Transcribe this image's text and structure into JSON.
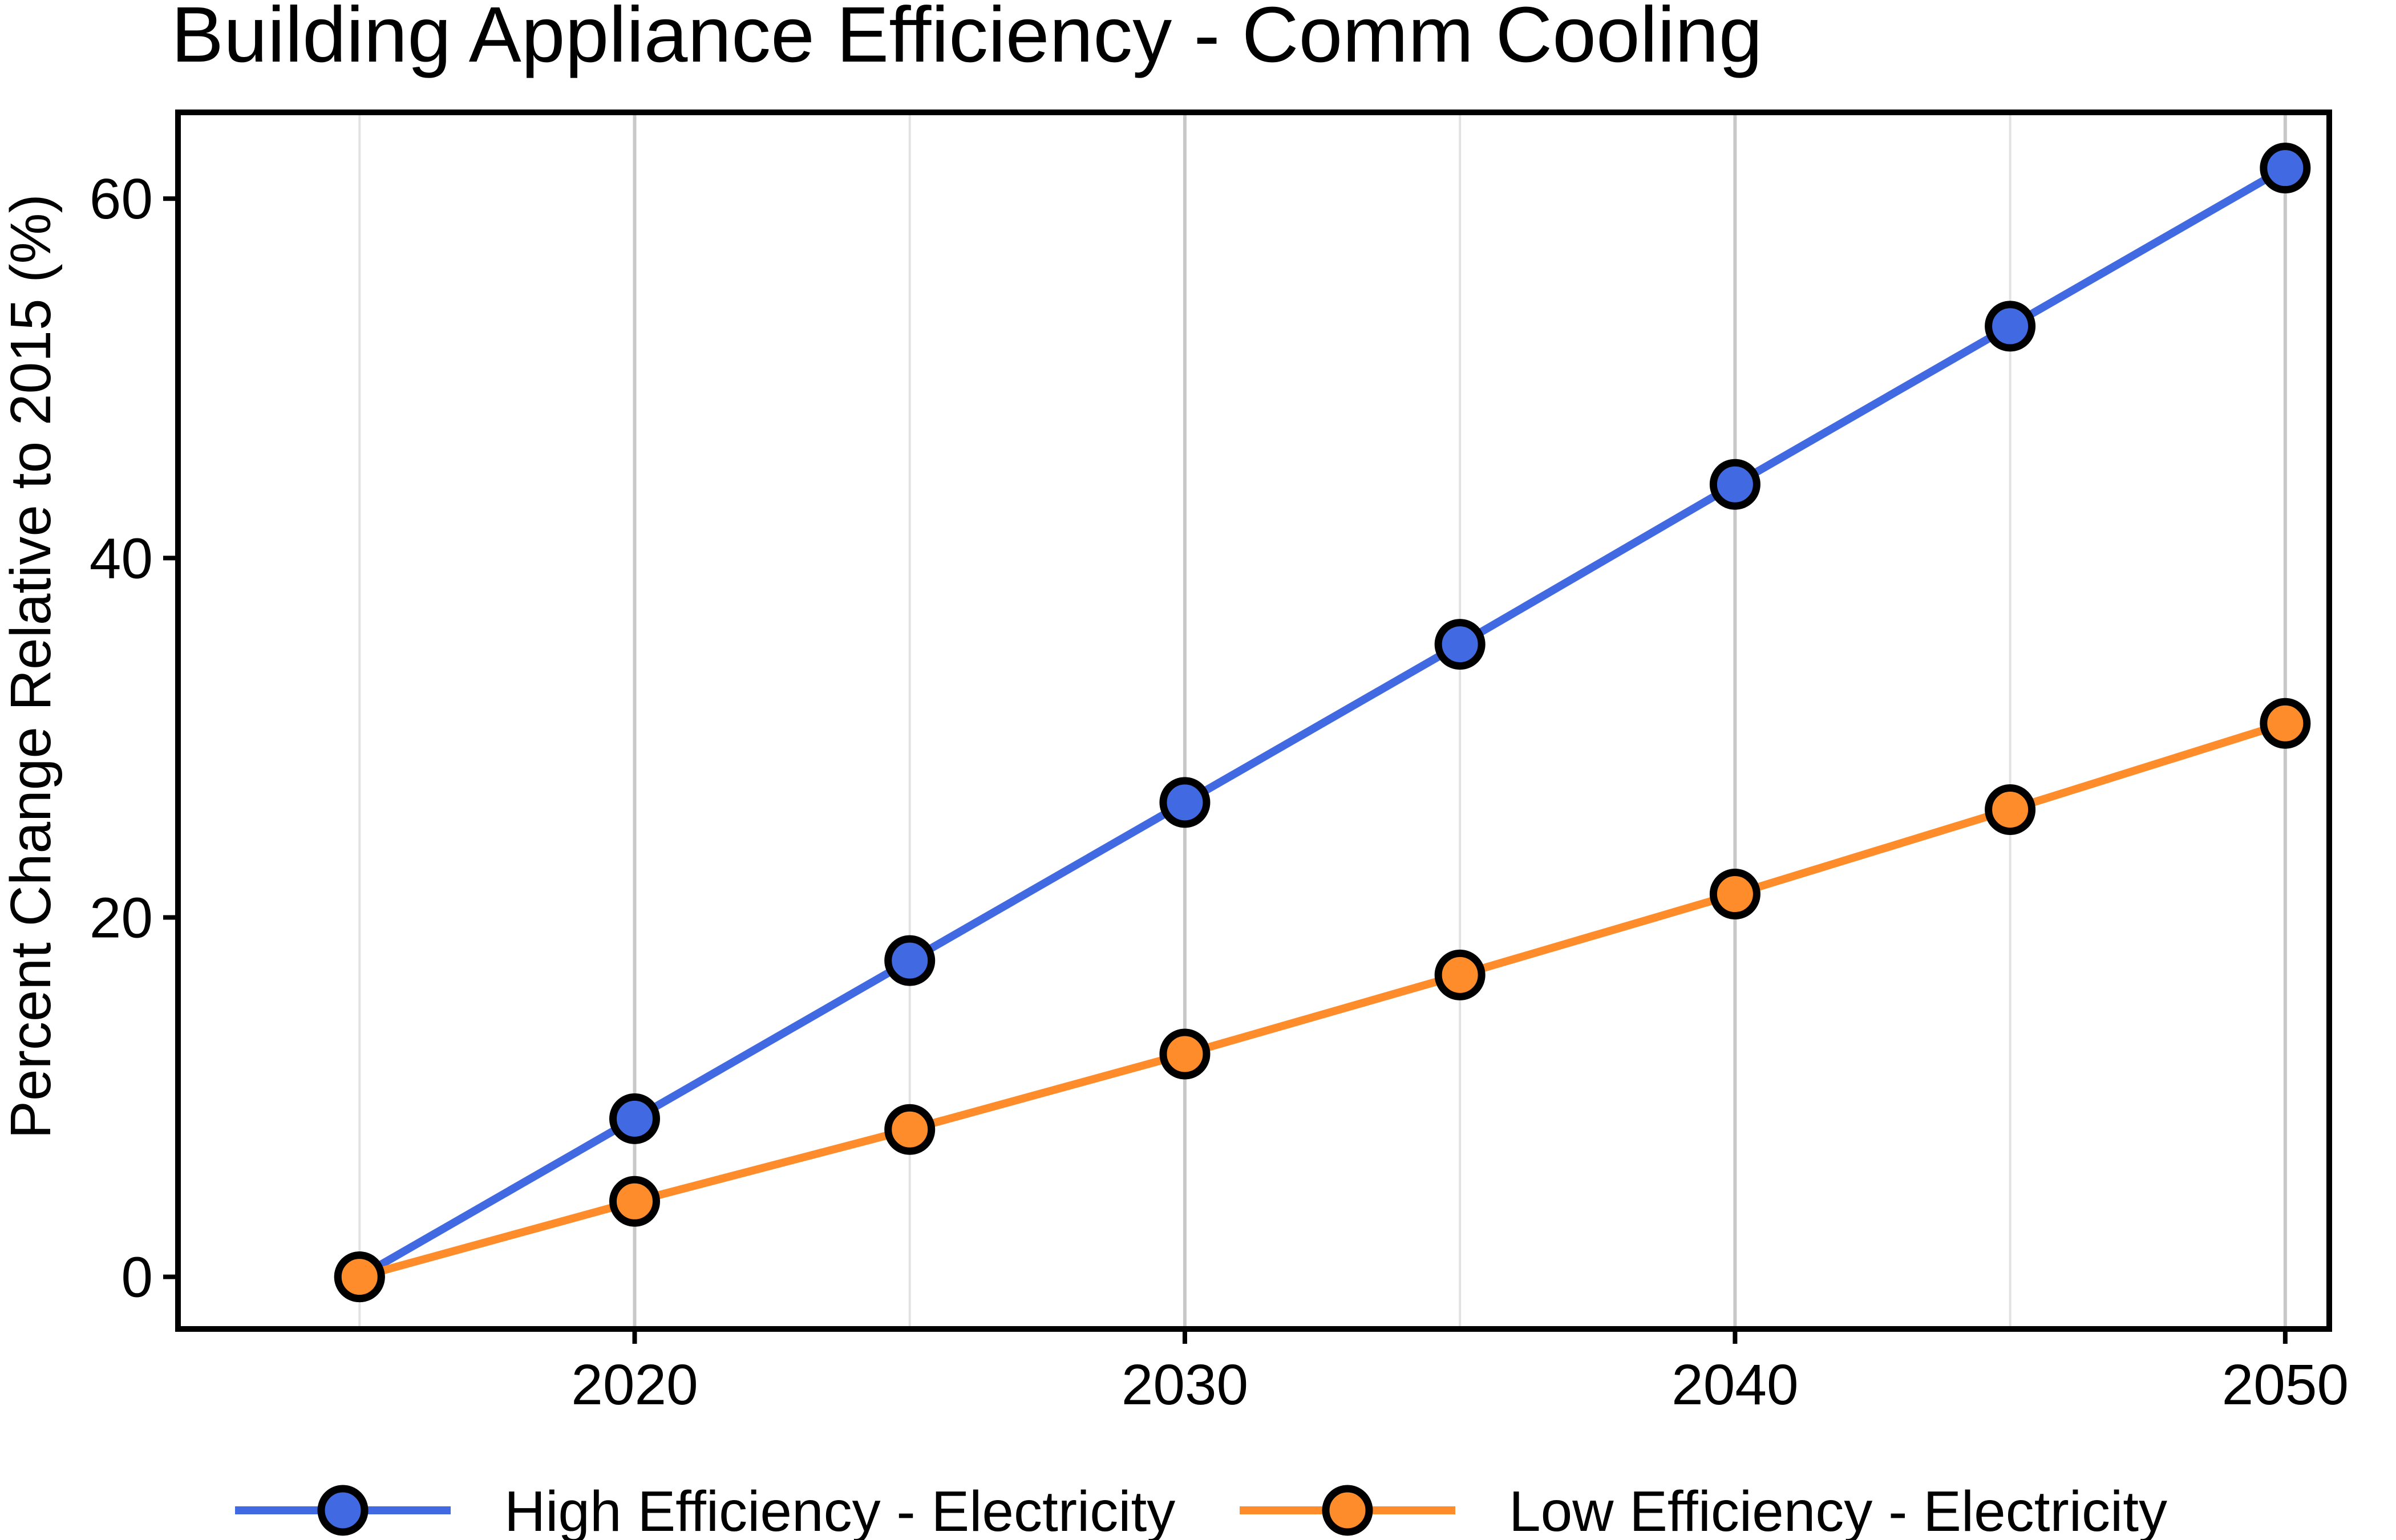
{
  "chart_data": {
    "type": "line",
    "title": "Building Appliance Efficiency - Comm Cooling",
    "xlabel": "",
    "ylabel": "Percent Change Relative to 2015 (%)",
    "x": [
      2015,
      2020,
      2025,
      2030,
      2035,
      2040,
      2045,
      2050
    ],
    "xlim": [
      2011.7,
      2050.8
    ],
    "ylim": [
      -2.9,
      64.8
    ],
    "xticks": [
      2020,
      2030,
      2040,
      2050
    ],
    "yticks": [
      0,
      20,
      40,
      60
    ],
    "grid": "vertical",
    "legend_position": "bottom",
    "series": [
      {
        "name": "High Efficiency - Electricity",
        "color": "#4169E1",
        "values": [
          0,
          8.8,
          17.6,
          26.4,
          35.2,
          44.1,
          52.9,
          61.7
        ]
      },
      {
        "name": "Low Efficiency - Electricity",
        "color": "#FF8C2A",
        "values": [
          0,
          4.2,
          8.2,
          12.4,
          16.8,
          21.3,
          26.0,
          30.8
        ]
      }
    ]
  }
}
